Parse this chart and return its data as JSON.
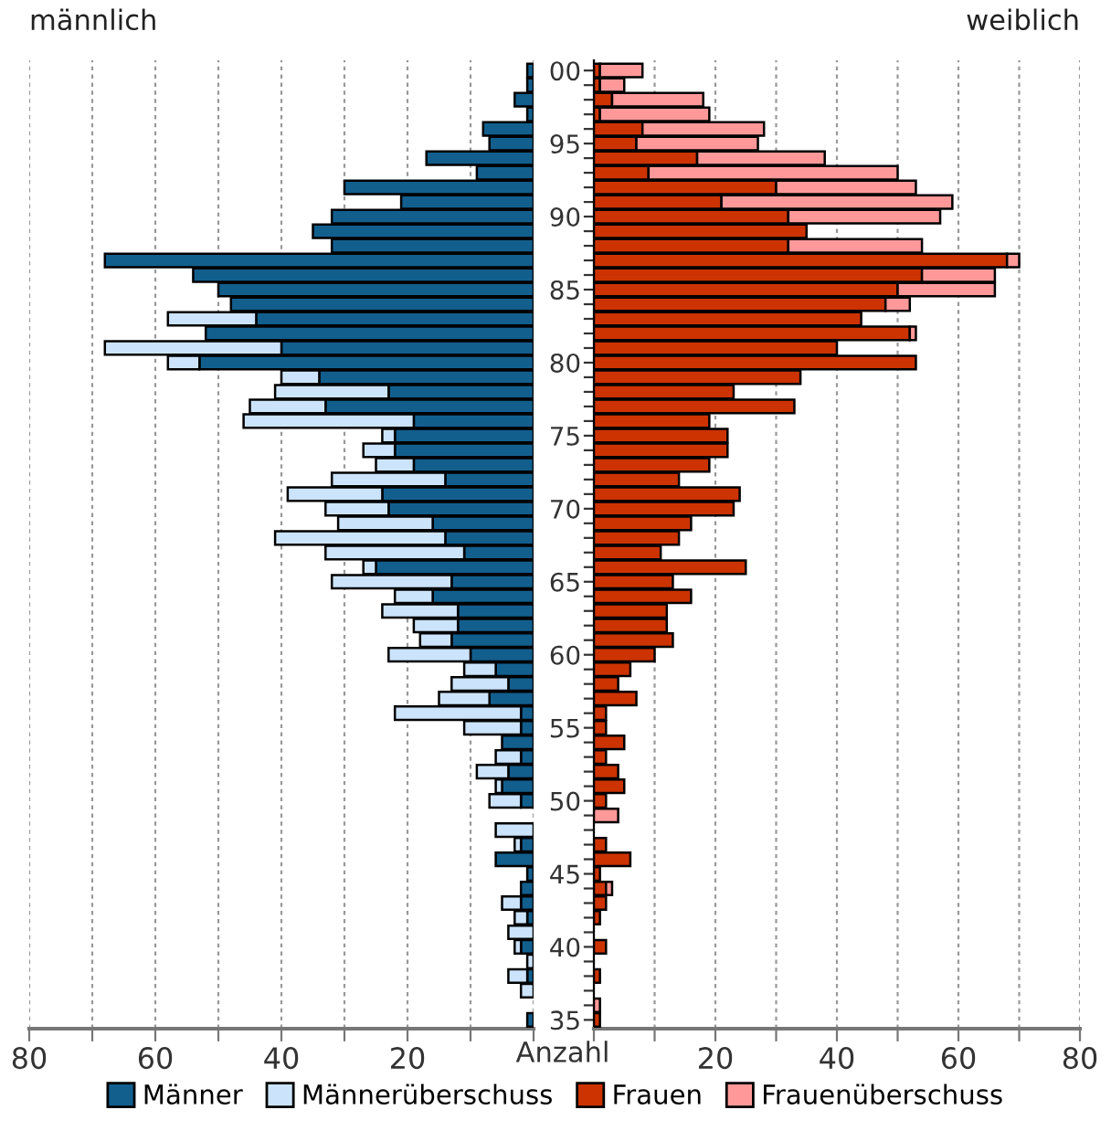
{
  "chart_data": [
    {
      "type": "bar",
      "orientation": "horizontal",
      "stacked": true,
      "title": "männlich",
      "annotations": [
        "Anzahl"
      ],
      "categories": [
        "00",
        null,
        null,
        null,
        null,
        "95",
        null,
        null,
        null,
        null,
        "90",
        null,
        null,
        null,
        null,
        "85",
        null,
        null,
        null,
        null,
        "80",
        null,
        null,
        null,
        null,
        "75",
        null,
        null,
        null,
        null,
        "70",
        null,
        null,
        null,
        null,
        "65",
        null,
        null,
        null,
        null,
        "60",
        null,
        null,
        null,
        null,
        "55",
        null,
        null,
        null,
        null,
        "50",
        null,
        null,
        null,
        null,
        "45",
        null,
        null,
        null,
        null,
        "40",
        null,
        null,
        null,
        null,
        "35"
      ],
      "series": [
        {
          "name": "Männer",
          "color": "#125f8e",
          "values": [
            1,
            1,
            3,
            1,
            8,
            7,
            17,
            9,
            30,
            21,
            32,
            35,
            32,
            68,
            54,
            50,
            48,
            44,
            52,
            40,
            53,
            34,
            23,
            33,
            19,
            22,
            22,
            19,
            14,
            24,
            23,
            16,
            14,
            11,
            25,
            13,
            16,
            12,
            12,
            13,
            10,
            6,
            4,
            7,
            2,
            2,
            5,
            2,
            4,
            5,
            2,
            null,
            null,
            2,
            6,
            1,
            2,
            2,
            1,
            null,
            2,
            null,
            1,
            null,
            null,
            1
          ]
        },
        {
          "name": "Männerüberschuss",
          "color": "#cce4fb",
          "values": [
            null,
            null,
            null,
            null,
            null,
            null,
            null,
            null,
            null,
            null,
            null,
            null,
            null,
            null,
            null,
            null,
            null,
            14,
            null,
            28,
            5,
            6,
            18,
            12,
            27,
            2,
            5,
            6,
            18,
            15,
            10,
            15,
            27,
            22,
            2,
            19,
            6,
            12,
            7,
            5,
            13,
            5,
            9,
            8,
            20,
            9,
            null,
            4,
            5,
            1,
            5,
            null,
            6,
            1,
            null,
            null,
            null,
            3,
            2,
            4,
            1,
            1,
            3,
            2,
            null,
            null
          ]
        }
      ],
      "xlim": [
        80,
        0
      ],
      "xticks": [
        80,
        {
          "value": 70,
          "label": null
        },
        60,
        {
          "value": 50,
          "label": null
        },
        40,
        {
          "value": 30,
          "label": null
        },
        20,
        {
          "value": 10,
          "label": null
        },
        {
          "value": 0,
          "label": null
        }
      ],
      "grid": "x",
      "legend": "bottom",
      "tick_labels": "x"
    },
    {
      "type": "bar",
      "orientation": "horizontal",
      "stacked": true,
      "title": "weiblich",
      "categories": [
        "00",
        null,
        null,
        null,
        null,
        "95",
        null,
        null,
        null,
        null,
        "90",
        null,
        null,
        null,
        null,
        "85",
        null,
        null,
        null,
        null,
        "80",
        null,
        null,
        null,
        null,
        "75",
        null,
        null,
        null,
        null,
        "70",
        null,
        null,
        null,
        null,
        "65",
        null,
        null,
        null,
        null,
        "60",
        null,
        null,
        null,
        null,
        "55",
        null,
        null,
        null,
        null,
        "50",
        null,
        null,
        null,
        null,
        "45",
        null,
        null,
        null,
        null,
        "40",
        null,
        null,
        null,
        null,
        "35"
      ],
      "series": [
        {
          "name": "Frauen",
          "color": "#cc3300",
          "values": [
            1,
            1,
            3,
            1,
            8,
            7,
            17,
            9,
            30,
            21,
            32,
            35,
            32,
            68,
            54,
            50,
            48,
            44,
            52,
            40,
            53,
            34,
            23,
            33,
            19,
            22,
            22,
            19,
            14,
            24,
            23,
            16,
            14,
            11,
            25,
            13,
            16,
            12,
            12,
            13,
            10,
            6,
            4,
            7,
            2,
            2,
            5,
            2,
            4,
            5,
            2,
            null,
            null,
            2,
            6,
            1,
            2,
            2,
            1,
            null,
            2,
            null,
            1,
            null,
            null,
            1
          ]
        },
        {
          "name": "Frauenüberschuss",
          "color": "#ff9999",
          "values": [
            7,
            4,
            15,
            18,
            20,
            20,
            21,
            41,
            23,
            38,
            25,
            null,
            22,
            2,
            12,
            16,
            4,
            null,
            1,
            null,
            null,
            null,
            null,
            null,
            null,
            null,
            null,
            null,
            null,
            null,
            null,
            null,
            null,
            null,
            null,
            null,
            null,
            null,
            null,
            null,
            null,
            null,
            null,
            null,
            null,
            null,
            null,
            null,
            null,
            null,
            null,
            4,
            null,
            null,
            null,
            null,
            1,
            null,
            null,
            null,
            null,
            null,
            null,
            null,
            1,
            null
          ]
        }
      ],
      "xlim": [
        0,
        80
      ],
      "xticks": [
        {
          "value": 0,
          "label": null
        },
        {
          "value": 10,
          "label": null
        },
        20,
        {
          "value": 30,
          "label": null
        },
        40,
        {
          "value": 50,
          "label": null
        },
        60,
        {
          "value": 70,
          "label": null
        },
        80
      ],
      "grid": "x",
      "legend": "bottom"
    }
  ]
}
